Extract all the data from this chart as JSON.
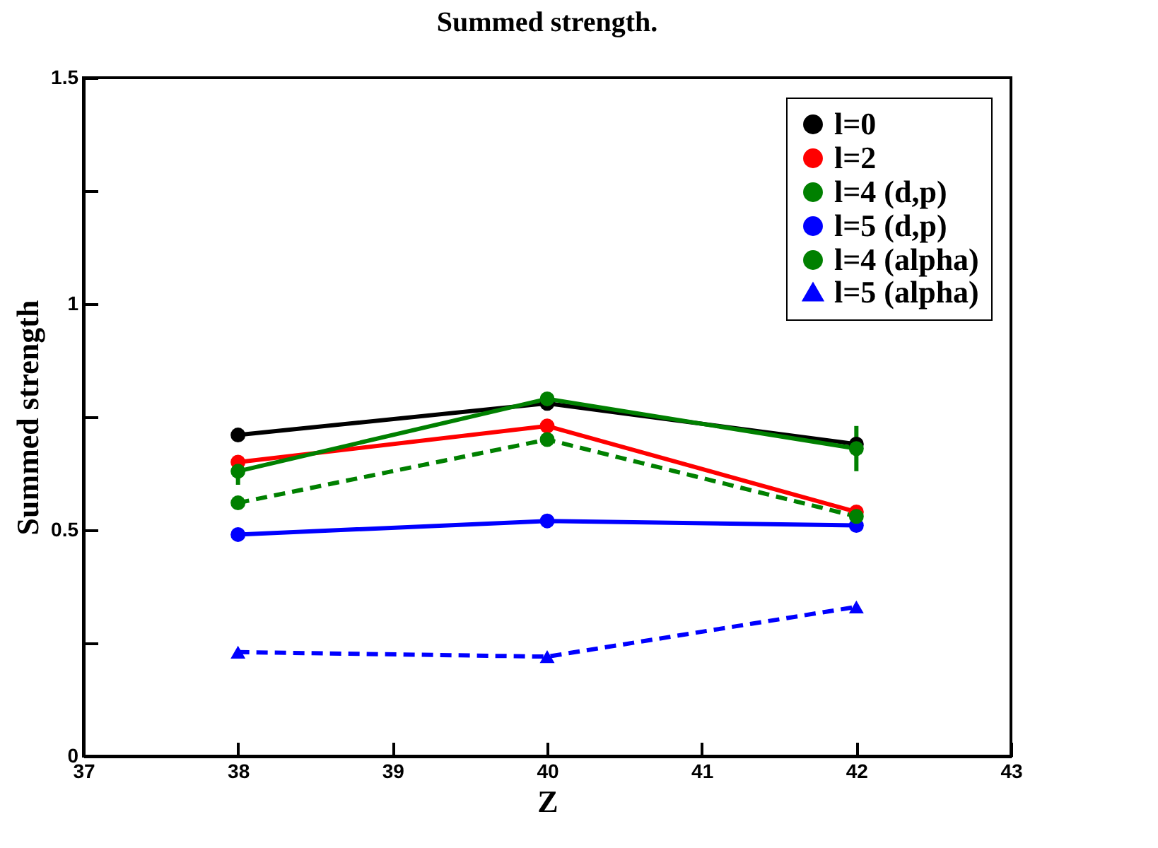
{
  "chart_data": {
    "type": "line",
    "title": "Summed strength.",
    "xlabel": "Z",
    "ylabel": "Summed strength",
    "x": [
      38,
      40,
      42
    ],
    "series": [
      {
        "name": "l=0",
        "color": "#000000",
        "values": [
          0.71,
          0.78,
          0.69
        ],
        "marker": "circle",
        "line_style": "solid"
      },
      {
        "name": "l=2",
        "color": "#ff0000",
        "values": [
          0.65,
          0.73,
          0.54
        ],
        "marker": "circle",
        "line_style": "solid"
      },
      {
        "name": "l=4 (d,p)",
        "color": "#008000",
        "values": [
          0.63,
          0.79,
          0.68
        ],
        "errors": [
          0.03,
          null,
          0.05
        ],
        "marker": "circle",
        "line_style": "solid"
      },
      {
        "name": "l=5 (d,p)",
        "color": "#0000ff",
        "values": [
          0.49,
          0.52,
          0.51
        ],
        "marker": "circle",
        "line_style": "solid"
      },
      {
        "name": "l=4 (alpha)",
        "color": "#008000",
        "values": [
          0.56,
          0.7,
          0.53
        ],
        "marker": "circle",
        "line_style": "dashed"
      },
      {
        "name": "l=5 (alpha)",
        "color": "#0000ff",
        "values": [
          0.23,
          0.22,
          0.33
        ],
        "marker": "triangle",
        "line_style": "dashed"
      }
    ],
    "xlim": [
      37,
      43
    ],
    "xticks": [
      37,
      38,
      39,
      40,
      41,
      42,
      43
    ],
    "ylim": [
      0,
      1.5
    ],
    "yticks": [
      0,
      {
        "value": 0.25,
        "label": null
      },
      0.5,
      {
        "value": 0.75,
        "label": null
      },
      1,
      {
        "value": 1.25,
        "label": null
      },
      1.5
    ],
    "grid": false,
    "legend": "top right"
  }
}
